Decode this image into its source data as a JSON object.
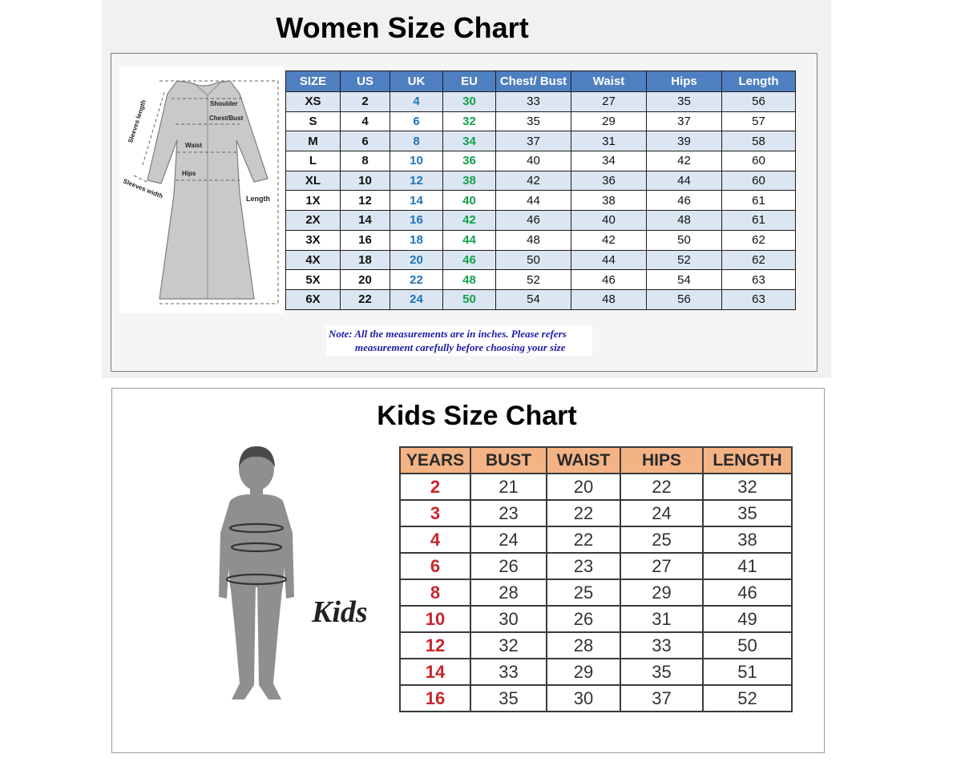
{
  "women": {
    "title": "Women Size Chart",
    "diagram_labels": {
      "shoulder": "Shoulder",
      "chest_bust": "Chest/Bust",
      "waist": "Waist",
      "hips": "Hips",
      "sleeves_length": "Sleeves length",
      "sleeves_width": "Sleeves width",
      "length": "Length"
    },
    "headers": [
      "SIZE",
      "US",
      "UK",
      "EU",
      "Chest/ Bust",
      "Waist",
      "Hips",
      "Length"
    ],
    "rows": [
      [
        "XS",
        "2",
        "4",
        "30",
        "33",
        "27",
        "35",
        "56"
      ],
      [
        "S",
        "4",
        "6",
        "32",
        "35",
        "29",
        "37",
        "57"
      ],
      [
        "M",
        "6",
        "8",
        "34",
        "37",
        "31",
        "39",
        "58"
      ],
      [
        "L",
        "8",
        "10",
        "36",
        "40",
        "34",
        "42",
        "60"
      ],
      [
        "XL",
        "10",
        "12",
        "38",
        "42",
        "36",
        "44",
        "60"
      ],
      [
        "1X",
        "12",
        "14",
        "40",
        "44",
        "38",
        "46",
        "61"
      ],
      [
        "2X",
        "14",
        "16",
        "42",
        "46",
        "40",
        "48",
        "61"
      ],
      [
        "3X",
        "16",
        "18",
        "44",
        "48",
        "42",
        "50",
        "62"
      ],
      [
        "4X",
        "18",
        "20",
        "46",
        "50",
        "44",
        "52",
        "62"
      ],
      [
        "5X",
        "20",
        "22",
        "48",
        "52",
        "46",
        "54",
        "63"
      ],
      [
        "6X",
        "22",
        "24",
        "50",
        "54",
        "48",
        "56",
        "63"
      ]
    ],
    "note_line1": "Note: All the measurements are in inches. Please refers",
    "note_line2": "measurement carefully before choosing your size",
    "colors": {
      "header_bg": "#4e7fc0",
      "alt_row_bg": "#dce6f2",
      "uk_text": "#1f73b8",
      "eu_text": "#14a04a",
      "note_text": "#1a1aa6"
    }
  },
  "kids": {
    "title": "Kids Size Chart",
    "figure_label": "Kids",
    "headers": [
      "YEARS",
      "BUST",
      "WAIST",
      "HIPS",
      "LENGTH"
    ],
    "rows": [
      [
        "2",
        "21",
        "20",
        "22",
        "32"
      ],
      [
        "3",
        "23",
        "22",
        "24",
        "35"
      ],
      [
        "4",
        "24",
        "22",
        "25",
        "38"
      ],
      [
        "6",
        "26",
        "23",
        "27",
        "41"
      ],
      [
        "8",
        "28",
        "25",
        "29",
        "46"
      ],
      [
        "10",
        "30",
        "26",
        "31",
        "49"
      ],
      [
        "12",
        "32",
        "28",
        "33",
        "50"
      ],
      [
        "14",
        "33",
        "29",
        "35",
        "51"
      ],
      [
        "16",
        "35",
        "30",
        "37",
        "52"
      ]
    ],
    "colors": {
      "header_bg": "#f3b385",
      "years_text": "#c8262c"
    }
  }
}
